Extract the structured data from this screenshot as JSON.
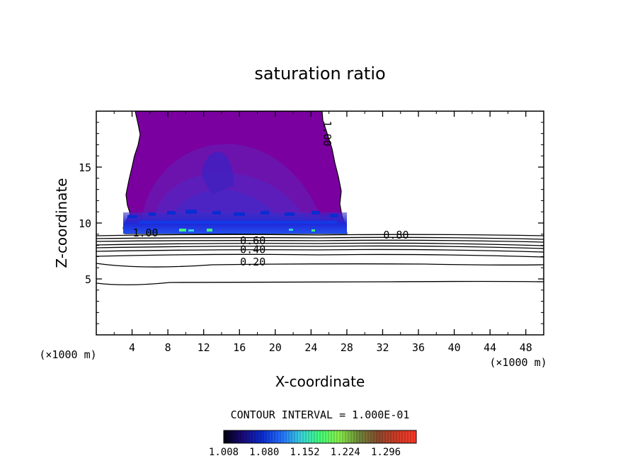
{
  "chart_data": {
    "type": "contour",
    "title": "saturation ratio",
    "xlabel": "X-coordinate",
    "ylabel": "Z-coordinate",
    "x_unit": "(×1000 m)",
    "z_unit": "(×1000 m)",
    "xlim": [
      0,
      50
    ],
    "ylim": [
      0,
      20
    ],
    "x_ticks": [
      4,
      8,
      12,
      16,
      20,
      24,
      28,
      32,
      36,
      40,
      44,
      48
    ],
    "y_ticks": [
      5,
      10,
      15
    ],
    "contour_interval_text": "CONTOUR INTERVAL = 1.000E-01",
    "contour_levels": [
      0.1,
      0.2,
      0.3,
      0.4,
      0.5,
      0.6,
      0.7,
      0.8,
      0.9,
      1.0
    ],
    "contour_labels": [
      {
        "text": "1.00",
        "x": 5.5,
        "z": 8.8
      },
      {
        "text": "0.60",
        "x": 17.5,
        "z": 8.1
      },
      {
        "text": "0.40",
        "x": 17.5,
        "z": 7.3
      },
      {
        "text": "0.20",
        "x": 17.5,
        "z": 6.2
      },
      {
        "text": "0.80",
        "x": 33.5,
        "z": 8.6
      },
      {
        "text": "1.00",
        "x": 25.4,
        "z": 18.0
      }
    ],
    "colorbar": {
      "ticks": [
        1.008,
        1.08,
        1.152,
        1.224,
        1.296
      ],
      "tick_labels": [
        "1.008",
        "1.080",
        "1.152",
        "1.224",
        "1.296"
      ],
      "min": 1.008,
      "max": 1.35
    },
    "supersaturated_region": {
      "x_range": [
        3,
        28
      ],
      "z_range": [
        9,
        20
      ],
      "fill_color": "#7b00a0"
    },
    "colormap": [
      "#000010",
      "#1a0a7a",
      "#0a2cd2",
      "#2470ff",
      "#39d4e0",
      "#42ff7a",
      "#8af04a",
      "#6e8a3a",
      "#8a4a2e",
      "#d23a24",
      "#ff3a2a"
    ]
  }
}
